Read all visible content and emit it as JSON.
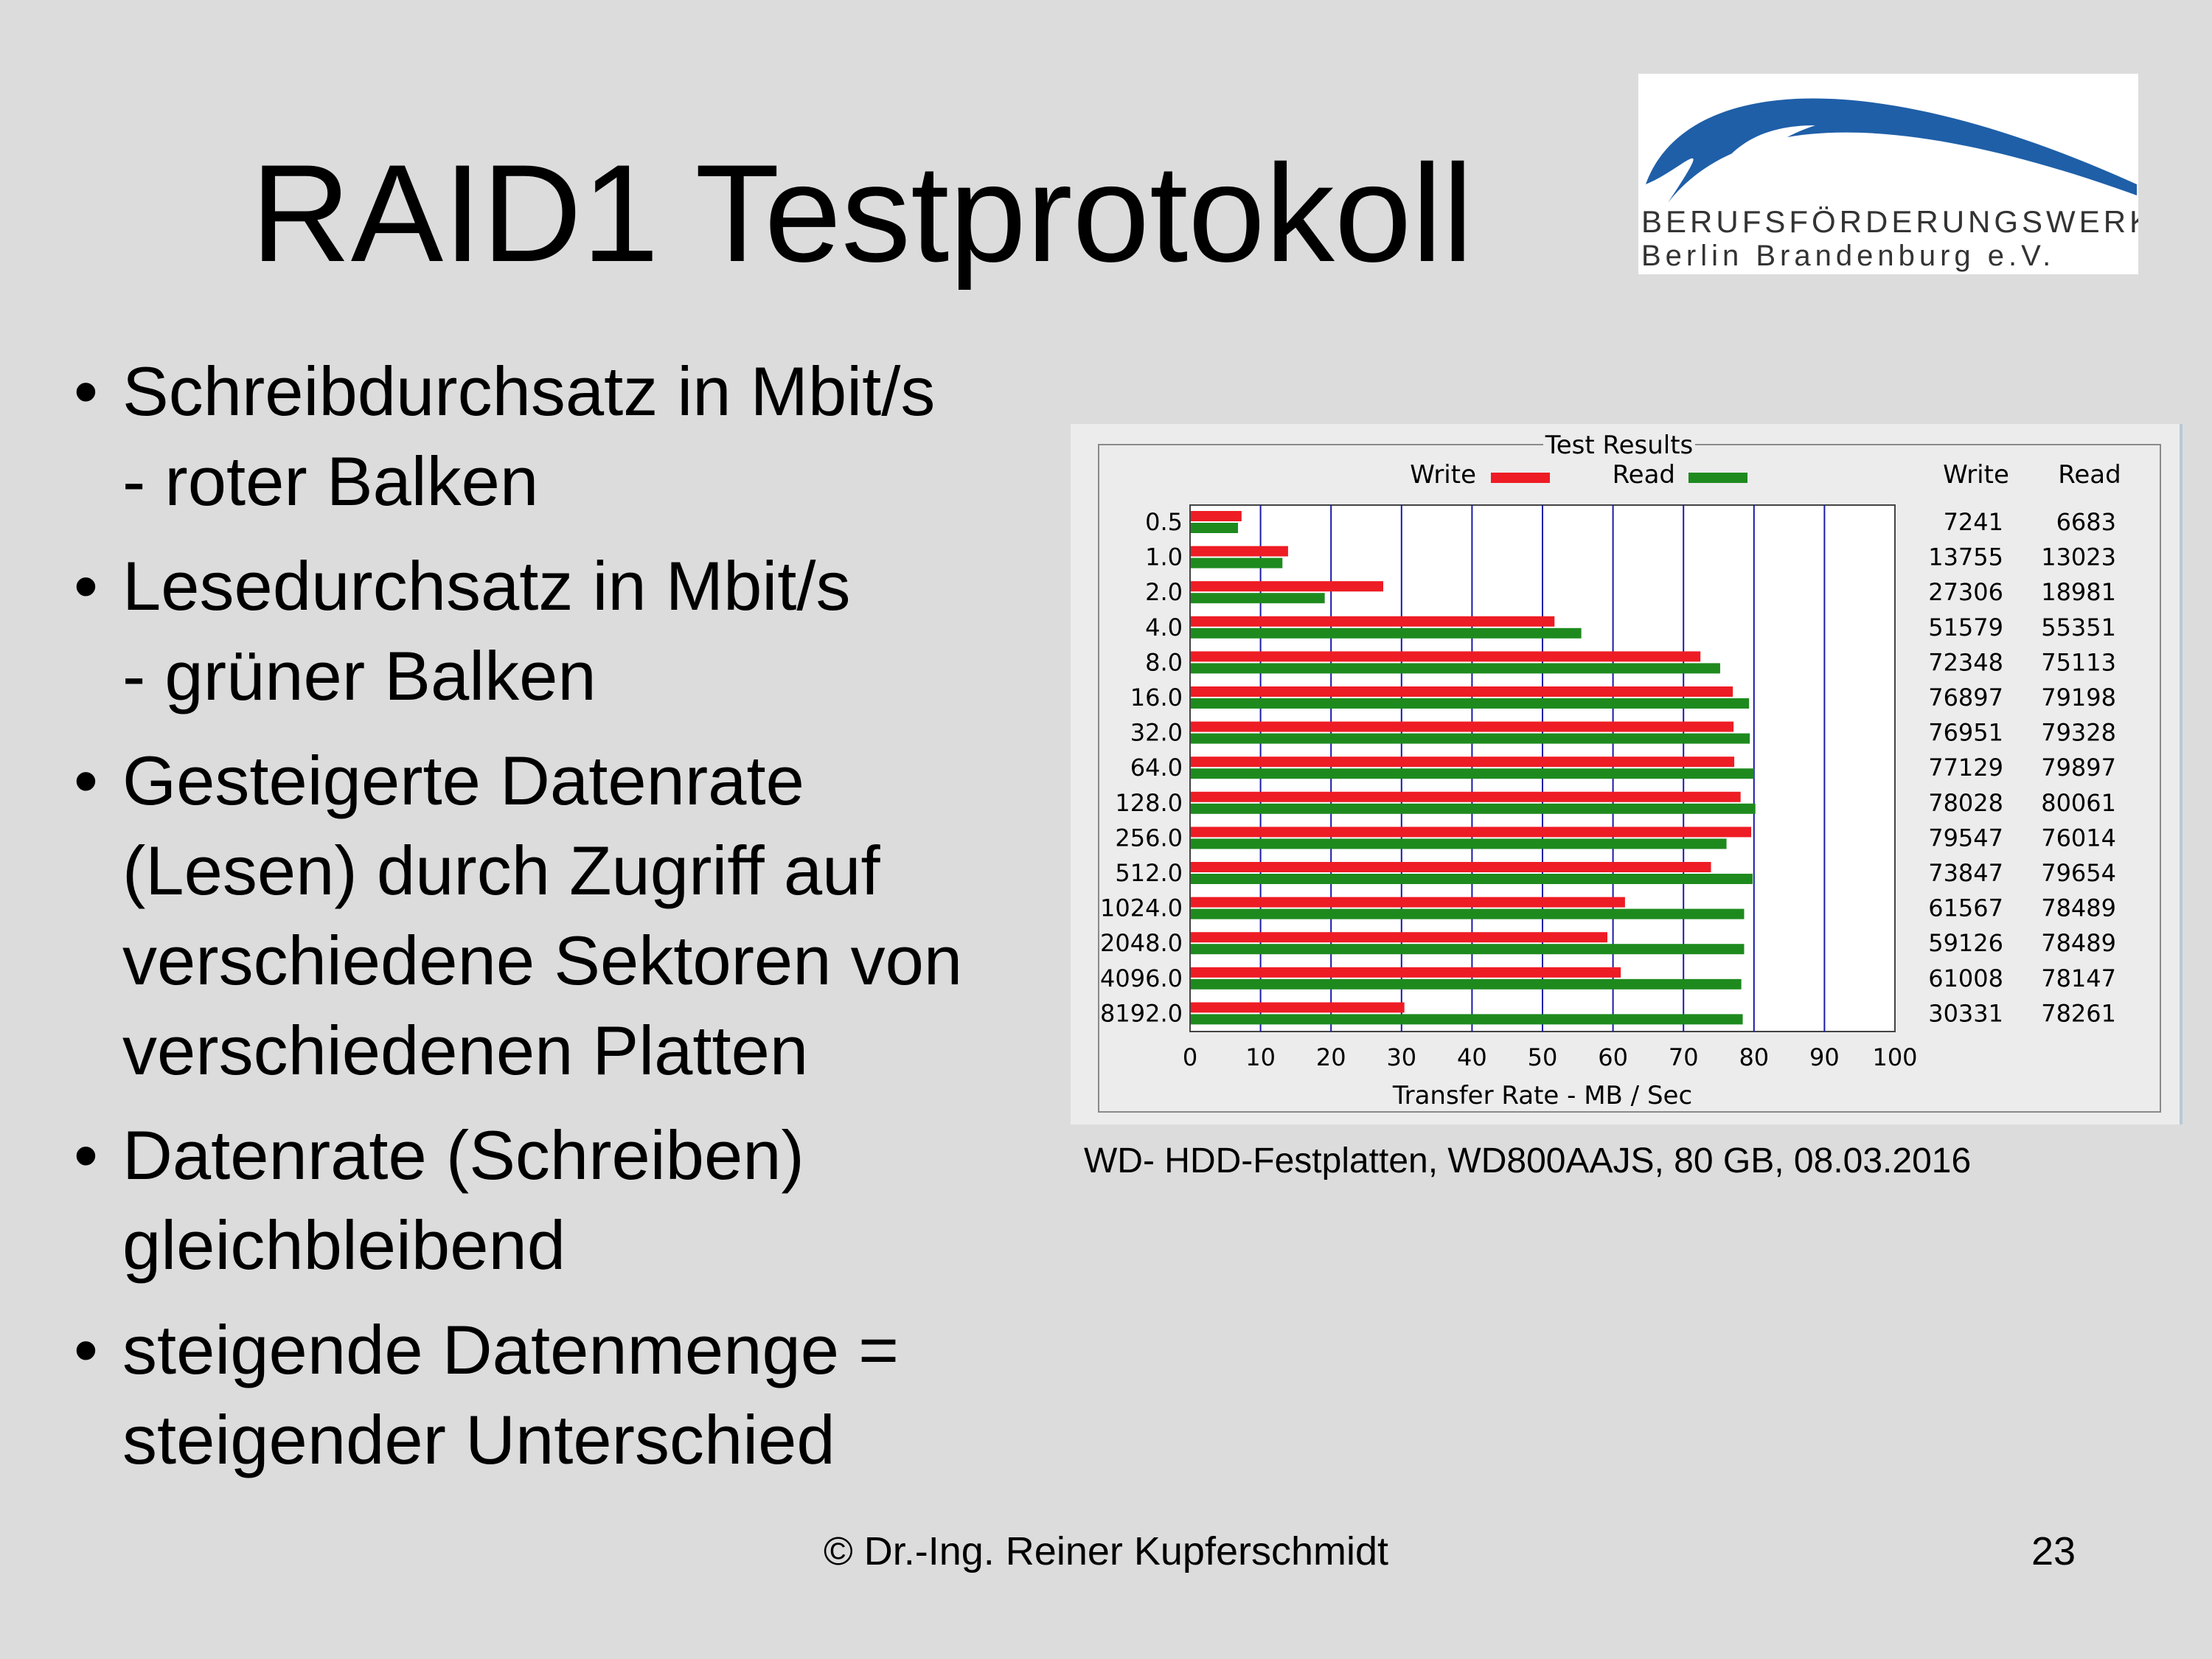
{
  "slide": {
    "title": "RAID1 Testprotokoll",
    "bullets": [
      [
        "Schreibdurchsatz in Mbit/s",
        "- roter Balken"
      ],
      [
        "Lesedurchsatz in Mbit/s",
        "- grüner Balken"
      ],
      [
        "Gesteigerte Datenrate",
        "(Lesen) durch Zugriff auf",
        "verschiedene Sektoren von",
        "verschiedenen Platten"
      ],
      [
        "Datenrate (Schreiben)",
        "gleichbleibend"
      ],
      [
        "steigende Datenmenge =",
        "steigender Unterschied"
      ]
    ],
    "caption": "WD- HDD-Festplatten, WD800AAJS, 80 GB, 08.03.2016",
    "footer_author": "© Dr.-Ing. Reiner Kupferschmidt",
    "page_number": "23"
  },
  "logo": {
    "line1": "BERUFSFÖRDERUNGSWERK",
    "line2": "Berlin Brandenburg e.V.",
    "color": "#1f5fa8"
  },
  "chart_data": {
    "type": "bar",
    "orientation": "horizontal",
    "title": "Test Results",
    "xlabel": "Transfer Rate - MB / Sec",
    "ylabel": "",
    "xlim": [
      0,
      100
    ],
    "xticks": [
      0,
      10,
      20,
      30,
      40,
      50,
      60,
      70,
      80,
      90,
      100
    ],
    "grid": true,
    "legend_position": "top",
    "categories": [
      "0.5",
      "1.0",
      "2.0",
      "4.0",
      "8.0",
      "16.0",
      "32.0",
      "64.0",
      "128.0",
      "256.0",
      "512.0",
      "1024.0",
      "2048.0",
      "4096.0",
      "8192.0"
    ],
    "series": [
      {
        "name": "Write",
        "color": "#ee1c24",
        "values": [
          7.2,
          13.8,
          27.3,
          51.6,
          72.3,
          76.9,
          77.0,
          77.1,
          78.0,
          79.5,
          73.8,
          61.6,
          59.1,
          61.0,
          30.3
        ]
      },
      {
        "name": "Read",
        "color": "#1e8a1e",
        "values": [
          6.7,
          13.0,
          19.0,
          55.4,
          75.1,
          79.2,
          79.3,
          79.9,
          80.1,
          76.0,
          79.7,
          78.5,
          78.5,
          78.1,
          78.3
        ]
      }
    ],
    "table": {
      "headers": [
        "Write",
        "Read"
      ],
      "write": [
        "7241",
        "13755",
        "27306",
        "51579",
        "72348",
        "76897",
        "76951",
        "77129",
        "78028",
        "79547",
        "73847",
        "61567",
        "59126",
        "61008",
        "30331"
      ],
      "read": [
        "6683",
        "13023",
        "18981",
        "55351",
        "75113",
        "79198",
        "79328",
        "79897",
        "80061",
        "76014",
        "79654",
        "78489",
        "78489",
        "78147",
        "78261"
      ]
    },
    "grid_color": "#1a1aa8"
  }
}
